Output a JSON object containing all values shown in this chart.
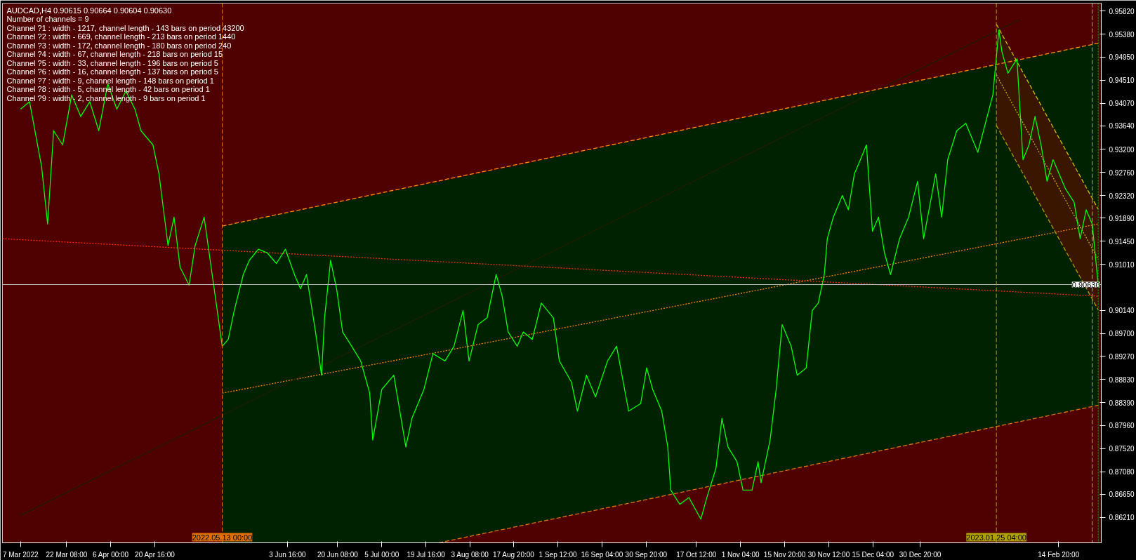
{
  "chart_data": {
    "type": "line",
    "title": "AUDCAD,H4  0.90615 0.90664 0.90604 0.90630",
    "annotations": [
      "Number of channels = 9",
      "Channel ?1 : width - 1217, channel length -  143 bars on period 43200",
      "Channel ?2 : width - 669, channel length -  213 bars on period 1440",
      "Channel ?3 : width - 172, channel length -  180 bars on period 240",
      "Channel ?4 : width - 67, channel length -  218 bars on period 15",
      "Channel ?5 : width - 33, channel length -  196 bars on period 5",
      "Channel ?6 : width - 16, channel length -  137 bars on period 5",
      "Channel ?7 : width - 9, channel length -  148 bars on period 1",
      "Channel ?8 : width - 5, channel length -  42 bars on period 1",
      "Channel ?9 : width - 2, channel length -  9 bars on period 1"
    ],
    "xlim": [
      "2022-03-01",
      "2023-03-01"
    ],
    "xticks": [
      {
        "value": "2022-03-07",
        "label": "7 Mar 2022"
      },
      {
        "value": "2022-03-22T08:00",
        "label": "22 Mar 08:00"
      },
      {
        "value": "2022-04-06",
        "label": "6 Apr 00:00"
      },
      {
        "value": "2022-04-20T16:00",
        "label": "20 Apr 16:00"
      },
      {
        "value": "2022-06-03T16:00",
        "label": "3 Jun 16:00"
      },
      {
        "value": "2022-06-20T08:00",
        "label": "20 Jun 08:00"
      },
      {
        "value": "2022-07-05",
        "label": "5 Jul 00:00"
      },
      {
        "value": "2022-07-19T16:00",
        "label": "19 Jul 16:00"
      },
      {
        "value": "2022-08-03T08:00",
        "label": "3 Aug 08:00"
      },
      {
        "value": "2022-08-17T20:00",
        "label": "17 Aug 20:00"
      },
      {
        "value": "2022-09-01T12:00",
        "label": "1 Sep 12:00"
      },
      {
        "value": "2022-09-16T04:00",
        "label": "16 Sep 04:00"
      },
      {
        "value": "2022-09-30T20:00",
        "label": "30 Sep 20:00"
      },
      {
        "value": "2022-10-17T12:00",
        "label": "17 Oct 12:00"
      },
      {
        "value": "2022-11-01T04:00",
        "label": "1 Nov 04:00"
      },
      {
        "value": "2022-11-15T20:00",
        "label": "15 Nov 20:00"
      },
      {
        "value": "2022-11-30T12:00",
        "label": "30 Nov 12:00"
      },
      {
        "value": "2022-12-15T04:00",
        "label": "15 Dec 04:00"
      },
      {
        "value": "2022-12-30T20:00",
        "label": "30 Dec 20:00"
      },
      {
        "value": "2023-02-14T20:00",
        "label": "14 Feb 20:00"
      }
    ],
    "ylim": [
      0.8573,
      0.9597
    ],
    "yticks": [
      {
        "value": 0.9582,
        "label": "0.95820"
      },
      {
        "value": 0.9538,
        "label": "0.95380"
      },
      {
        "value": 0.9495,
        "label": "0.94950"
      },
      {
        "value": 0.9451,
        "label": "0.94510"
      },
      {
        "value": 0.9407,
        "label": "0.94070"
      },
      {
        "value": 0.9364,
        "label": "0.93640"
      },
      {
        "value": 0.932,
        "label": "0.93200"
      },
      {
        "value": 0.9276,
        "label": "0.92760"
      },
      {
        "value": 0.9232,
        "label": "0.92320"
      },
      {
        "value": 0.9189,
        "label": "0.91890"
      },
      {
        "value": 0.9145,
        "label": "0.91450"
      },
      {
        "value": 0.9101,
        "label": "0.91010"
      },
      {
        "value": 0.9014,
        "label": "0.90140"
      },
      {
        "value": 0.897,
        "label": "0.89700"
      },
      {
        "value": 0.8927,
        "label": "0.89270"
      },
      {
        "value": 0.8883,
        "label": "0.88830"
      },
      {
        "value": 0.8839,
        "label": "0.88390"
      },
      {
        "value": 0.8796,
        "label": "0.87960"
      },
      {
        "value": 0.8752,
        "label": "0.87520"
      },
      {
        "value": 0.8708,
        "label": "0.87080"
      },
      {
        "value": 0.8665,
        "label": "0.86650"
      },
      {
        "value": 0.8621,
        "label": "0.86210"
      }
    ],
    "grid": false,
    "series": [
      {
        "color": "#ff8000",
        "line_style": "dotted",
        "x": [
          "2022-05-13",
          "2022-07-24",
          "2023-02-28"
        ],
        "values": [
          0.8857,
          0.8935,
          0.9178
        ],
        "lower": [
          0.8573,
          0.8573,
          0.8834
        ],
        "upper": [
          0.9174,
          0.9258,
          0.9521
        ]
      },
      {
        "color": "#c8b400",
        "line_style": "dotted",
        "x": [
          "2023-01-25T04:00",
          "2023-02-28"
        ],
        "values": [
          0.9461,
          0.9111
        ],
        "lower": [
          0.9365,
          0.9015
        ],
        "upper": [
          0.9557,
          0.9206
        ]
      },
      {
        "color": "#1e1e00",
        "line_style": "solid",
        "x": [
          "2022-03-07",
          "2023-02-02"
        ],
        "values": [
          0.8625,
          0.9566
        ]
      },
      {
        "color": "#ff2a00",
        "line_style": "dotted",
        "x": [
          "2022-03-01",
          "2023-02-28"
        ],
        "values": [
          0.915,
          0.9041
        ]
      },
      {
        "color": "#ff8c00",
        "line_style": "dashed",
        "x": [
          "2022-05-13",
          "2023-02-28"
        ],
        "values": [
          0.9174,
          0.9521
        ]
      },
      {
        "color": "#e07010",
        "line_style": "dashed",
        "x": [
          "2022-07-24",
          "2023-02-28"
        ],
        "values": [
          0.8573,
          0.8834
        ]
      },
      {
        "color": "#d4bc00",
        "line_style": "dashed",
        "x": [
          "2023-01-25T04:00",
          "2023-02-28"
        ],
        "values": [
          0.9557,
          0.9206
        ]
      },
      {
        "color": "#b09a00",
        "line_style": "dashed",
        "x": [
          "2023-01-25T04:00",
          "2023-02-28"
        ],
        "values": [
          0.9365,
          0.9015
        ]
      },
      {
        "color": "#00ff00",
        "line_style": "solid",
        "x": [
          "2022-03-07",
          "2022-03-10",
          "2022-03-14",
          "2022-03-16",
          "2022-03-18",
          "2022-03-21",
          "2022-03-24",
          "2022-03-27",
          "2022-03-30",
          "2022-04-02",
          "2022-04-05",
          "2022-04-08",
          "2022-04-11",
          "2022-04-14",
          "2022-04-16",
          "2022-04-20",
          "2022-04-22",
          "2022-04-25",
          "2022-04-27",
          "2022-04-29",
          "2022-05-02",
          "2022-05-04",
          "2022-05-07",
          "2022-05-09",
          "2022-05-11",
          "2022-05-13",
          "2022-05-15",
          "2022-05-17",
          "2022-05-20",
          "2022-05-22",
          "2022-05-25",
          "2022-05-28",
          "2022-05-31",
          "2022-06-03",
          "2022-06-06",
          "2022-06-08",
          "2022-06-10",
          "2022-06-13",
          "2022-06-15",
          "2022-06-16",
          "2022-06-18",
          "2022-06-20",
          "2022-06-22",
          "2022-06-25",
          "2022-06-28",
          "2022-07-01",
          "2022-07-02",
          "2022-07-05",
          "2022-07-09",
          "2022-07-13",
          "2022-07-15",
          "2022-07-19",
          "2022-07-22",
          "2022-07-26",
          "2022-07-29",
          "2022-08-01",
          "2022-08-03",
          "2022-08-06",
          "2022-08-09",
          "2022-08-12",
          "2022-08-14",
          "2022-08-16",
          "2022-08-19",
          "2022-08-21",
          "2022-08-24",
          "2022-08-27",
          "2022-08-31",
          "2022-09-02",
          "2022-09-06",
          "2022-09-08",
          "2022-09-11",
          "2022-09-14",
          "2022-09-18",
          "2022-09-21",
          "2022-09-25",
          "2022-09-29",
          "2022-10-01",
          "2022-10-03",
          "2022-10-06",
          "2022-10-08",
          "2022-10-09",
          "2022-10-12",
          "2022-10-15",
          "2022-10-19",
          "2022-10-21",
          "2022-10-24",
          "2022-10-26",
          "2022-10-28",
          "2022-10-31",
          "2022-11-02",
          "2022-11-05",
          "2022-11-07",
          "2022-11-08",
          "2022-11-11",
          "2022-11-13",
          "2022-11-15",
          "2022-11-18",
          "2022-11-20",
          "2022-11-23",
          "2022-11-25",
          "2022-11-27",
          "2022-11-29",
          "2022-11-30",
          "2022-12-02",
          "2022-12-05",
          "2022-12-07",
          "2022-12-09",
          "2022-12-11",
          "2022-12-13",
          "2022-12-15",
          "2022-12-17",
          "2022-12-19",
          "2022-12-21",
          "2022-12-24",
          "2022-12-27",
          "2022-12-30",
          "2023-01-01",
          "2023-01-05",
          "2023-01-07",
          "2023-01-09",
          "2023-01-12",
          "2023-01-15",
          "2023-01-19",
          "2023-01-24",
          "2023-01-26",
          "2023-01-27",
          "2023-01-29",
          "2023-02-01",
          "2023-02-03",
          "2023-02-05",
          "2023-02-07",
          "2023-02-09",
          "2023-02-11",
          "2023-02-13",
          "2023-02-15",
          "2023-02-17",
          "2023-02-20",
          "2023-02-22",
          "2023-02-24",
          "2023-02-26",
          "2023-02-28"
        ],
        "values": [
          0.9396,
          0.941,
          0.9287,
          0.9178,
          0.9355,
          0.9328,
          0.9423,
          0.9382,
          0.941,
          0.9355,
          0.9444,
          0.9396,
          0.943,
          0.9396,
          0.9355,
          0.9328,
          0.9273,
          0.9137,
          0.9191,
          0.9096,
          0.9062,
          0.9137,
          0.9191,
          0.9109,
          0.9028,
          0.8946,
          0.8959,
          0.9014,
          0.9082,
          0.9109,
          0.913,
          0.9123,
          0.9103,
          0.913,
          0.9082,
          0.9055,
          0.9082,
          0.8973,
          0.8891,
          0.9,
          0.9109,
          0.9055,
          0.8973,
          0.8946,
          0.8918,
          0.8857,
          0.8768,
          0.8864,
          0.8891,
          0.8755,
          0.8809,
          0.8864,
          0.8932,
          0.8918,
          0.8946,
          0.9014,
          0.8918,
          0.8987,
          0.9,
          0.9082,
          0.9041,
          0.8973,
          0.8946,
          0.8973,
          0.8959,
          0.9028,
          0.9,
          0.8918,
          0.8878,
          0.8823,
          0.8891,
          0.885,
          0.8918,
          0.8946,
          0.8823,
          0.8837,
          0.8905,
          0.8864,
          0.8823,
          0.8755,
          0.8673,
          0.8646,
          0.8659,
          0.8618,
          0.8659,
          0.8714,
          0.8809,
          0.8755,
          0.8727,
          0.8673,
          0.8673,
          0.8727,
          0.8687,
          0.8768,
          0.8864,
          0.8987,
          0.8946,
          0.8891,
          0.8905,
          0.9014,
          0.9028,
          0.9082,
          0.915,
          0.9191,
          0.9232,
          0.9205,
          0.9273,
          0.93,
          0.9328,
          0.9164,
          0.9191,
          0.9123,
          0.9082,
          0.915,
          0.9191,
          0.9259,
          0.915,
          0.9273,
          0.9191,
          0.93,
          0.9355,
          0.9369,
          0.9314,
          0.9423,
          0.9546,
          0.9505,
          0.9464,
          0.9491,
          0.93,
          0.9328,
          0.9382,
          0.9328,
          0.9259,
          0.93,
          0.9273,
          0.9246,
          0.9219,
          0.915,
          0.9205,
          0.9178,
          0.9063
        ]
      }
    ],
    "ref_lines": [
      {
        "axis": "y",
        "value": 0.9063,
        "label": "0.90630",
        "color": "#c0c0c0",
        "line_style": "solid"
      },
      {
        "axis": "x",
        "value": "2022-05-13",
        "label": "2022.05.13 00:00",
        "color": "#e07000",
        "line_style": "dashed"
      },
      {
        "axis": "x",
        "value": "2023-01-25T04:00",
        "label": "2023.01.25 04:00",
        "color": "#b0a000",
        "line_style": "dashed"
      },
      {
        "axis": "x",
        "value": "2023-02-26",
        "label": null,
        "color": "#9acd32",
        "line_style": "dashed"
      },
      {
        "axis": "x",
        "value": "2023-02-28",
        "label": null,
        "color": "#00c000",
        "line_style": "dotted"
      }
    ]
  }
}
